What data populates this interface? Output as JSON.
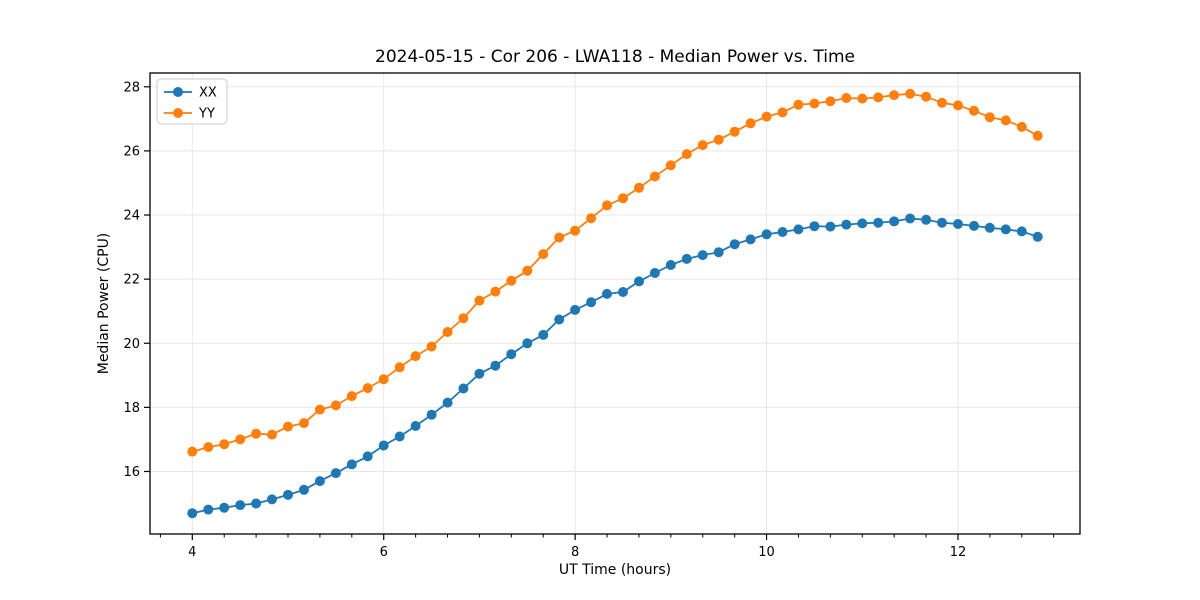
{
  "chart_data": {
    "type": "line",
    "title": "2024-05-15 - Cor 206 - LWA118 - Median Power vs. Time",
    "xlabel": "UT Time (hours)",
    "ylabel": "Median Power (CPU)",
    "xlim": [
      3.558,
      13.275
    ],
    "ylim": [
      14.05,
      28.43
    ],
    "xticks": [
      4,
      6,
      8,
      10,
      12
    ],
    "yticks": [
      16,
      18,
      20,
      22,
      24,
      26,
      28
    ],
    "x_minor_step": 0.3333,
    "grid": true,
    "grid_color": "#e7e7e7",
    "legend_position": "upper left",
    "background": "#ffffff",
    "x": [
      4.0,
      4.167,
      4.333,
      4.5,
      4.667,
      4.833,
      5.0,
      5.167,
      5.333,
      5.5,
      5.667,
      5.833,
      6.0,
      6.167,
      6.333,
      6.5,
      6.667,
      6.833,
      7.0,
      7.167,
      7.333,
      7.5,
      7.667,
      7.833,
      8.0,
      8.167,
      8.333,
      8.5,
      8.667,
      8.833,
      9.0,
      9.167,
      9.333,
      9.5,
      9.667,
      9.833,
      10.0,
      10.167,
      10.333,
      10.5,
      10.667,
      10.833,
      11.0,
      11.167,
      11.333,
      11.5,
      11.667,
      11.833,
      12.0,
      12.167,
      12.333,
      12.5,
      12.667,
      12.833
    ],
    "series": [
      {
        "name": "XX",
        "color": "#1f77b4",
        "values": [
          14.7,
          14.81,
          14.87,
          14.95,
          15.0,
          15.13,
          15.27,
          15.43,
          15.7,
          15.95,
          16.22,
          16.47,
          16.81,
          17.09,
          17.42,
          17.77,
          18.15,
          18.59,
          19.05,
          19.3,
          19.66,
          20.0,
          20.26,
          20.74,
          21.04,
          21.28,
          21.54,
          21.6,
          21.93,
          22.19,
          22.44,
          22.63,
          22.75,
          22.84,
          23.09,
          23.24,
          23.4,
          23.47,
          23.55,
          23.65,
          23.64,
          23.7,
          23.74,
          23.76,
          23.8,
          23.89,
          23.85,
          23.76,
          23.72,
          23.66,
          23.6,
          23.55,
          23.49,
          23.32
        ]
      },
      {
        "name": "YY",
        "color": "#ff7f0e",
        "values": [
          16.62,
          16.76,
          16.85,
          17.0,
          17.18,
          17.15,
          17.4,
          17.51,
          17.93,
          18.06,
          18.35,
          18.6,
          18.88,
          19.25,
          19.6,
          19.9,
          20.35,
          20.78,
          21.33,
          21.61,
          21.95,
          22.26,
          22.78,
          23.3,
          23.51,
          23.9,
          24.3,
          24.52,
          24.85,
          25.2,
          25.55,
          25.9,
          26.18,
          26.35,
          26.6,
          26.86,
          27.07,
          27.2,
          27.44,
          27.48,
          27.55,
          27.65,
          27.63,
          27.67,
          27.74,
          27.78,
          27.69,
          27.5,
          27.42,
          27.25,
          27.05,
          26.95,
          26.75,
          26.47
        ]
      }
    ]
  }
}
